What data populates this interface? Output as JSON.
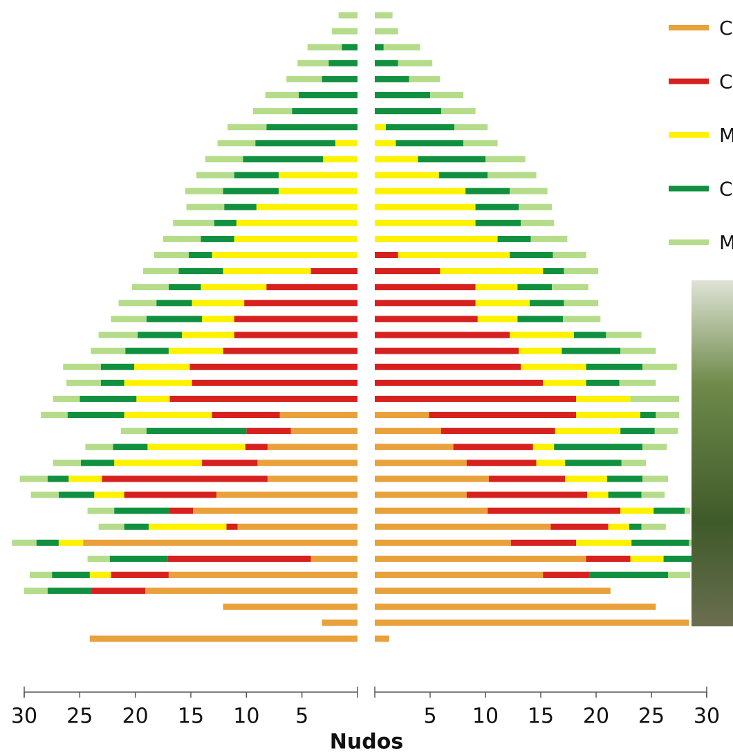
{
  "chart_data": [
    {
      "type": "bar",
      "orientation": "horizontal",
      "xlim": [
        30,
        0
      ],
      "xticks": [
        30,
        25,
        20,
        15,
        10,
        5
      ],
      "xlabel": "Nudos",
      "series": [
        {
          "color": "#e9a13b",
          "values": [
            0,
            0,
            0,
            0,
            0,
            0,
            0,
            0,
            0,
            0,
            0,
            0,
            0,
            0,
            0,
            0,
            0,
            0,
            0,
            0,
            0,
            0,
            0,
            0,
            0,
            7,
            6,
            8.1,
            9,
            8.1,
            12.7,
            14.8,
            10.8,
            24.7,
            4.2,
            17,
            19.1,
            12.1,
            3.2,
            24.1
          ]
        },
        {
          "color": "#d7211f",
          "values": [
            0,
            0,
            0,
            0,
            0,
            0,
            0,
            0,
            0,
            0,
            0,
            0,
            0,
            0,
            0,
            0,
            4.2,
            8.2,
            10.2,
            11.1,
            11.1,
            12.1,
            15.1,
            14.9,
            16.9,
            6.1,
            4,
            2,
            5,
            14.9,
            8.3,
            2.1,
            1,
            0,
            12.9,
            5.2,
            4.8,
            0,
            0,
            0
          ]
        },
        {
          "color": "#fff200",
          "values": [
            0,
            0,
            0,
            0,
            0,
            0,
            0,
            0,
            2,
            3.1,
            7.1,
            7.1,
            9.1,
            10.9,
            11.1,
            13.1,
            7.9,
            5.9,
            4.7,
            2.9,
            4.7,
            4.9,
            5,
            6.1,
            3,
            7.9,
            0,
            8.8,
            7.9,
            3,
            2.7,
            0,
            7,
            2.2,
            0,
            1.9,
            0,
            0,
            0,
            0
          ]
        },
        {
          "color": "#119040",
          "values": [
            0,
            0,
            1.4,
            2.6,
            3.2,
            5.3,
            5.9,
            8.2,
            7.2,
            7.2,
            4,
            5,
            2.9,
            2,
            3,
            2.1,
            4,
            2.9,
            3.2,
            5,
            4,
            3.9,
            3,
            2.1,
            5.1,
            5.1,
            9,
            3.1,
            3,
            1.9,
            3.2,
            5,
            2.2,
            2,
            5.2,
            3.4,
            4,
            0,
            0,
            0
          ]
        },
        {
          "color": "#b5dc8a",
          "values": [
            1.7,
            2.3,
            3.1,
            2.8,
            3.2,
            3,
            3.5,
            3.5,
            3.4,
            3.4,
            3.4,
            3.4,
            3.4,
            3.7,
            3.4,
            3.1,
            3.2,
            3.3,
            3.4,
            3.2,
            3.5,
            3.1,
            3.4,
            3.1,
            2.4,
            2.4,
            2.3,
            2.5,
            2.5,
            2.5,
            2.5,
            2.4,
            2.3,
            2.2,
            2,
            2,
            2.1,
            0,
            0,
            0
          ]
        }
      ]
    },
    {
      "type": "bar",
      "orientation": "horizontal",
      "xlim": [
        0,
        30
      ],
      "xticks": [
        5,
        10,
        15,
        20,
        25,
        30
      ],
      "legend": "upper right",
      "series": [
        {
          "name": "C",
          "color": "#e9a13b",
          "values": [
            0,
            0,
            0,
            0,
            0,
            0,
            0,
            0,
            0,
            0,
            0,
            0,
            0,
            0,
            0,
            0,
            0,
            0,
            0,
            0,
            0,
            0,
            0,
            0,
            0,
            4.9,
            6,
            7.1,
            8.3,
            10.3,
            8.3,
            10.2,
            15.9,
            12.3,
            19.1,
            15.2,
            21.3,
            25.4,
            28.4,
            1.3
          ]
        },
        {
          "name": "C",
          "color": "#d7211f",
          "values": [
            0,
            0,
            0,
            0,
            0,
            0,
            0,
            0,
            0,
            0,
            0,
            0,
            0,
            0,
            0,
            2.1,
            5.9,
            9.1,
            9.1,
            9.3,
            12.2,
            13,
            13.2,
            15.2,
            18.2,
            13.3,
            10.3,
            7.2,
            6.3,
            6.9,
            10.9,
            12,
            5.2,
            5.9,
            4,
            4.2,
            0,
            0,
            0,
            0
          ]
        },
        {
          "name": "M",
          "color": "#fff200",
          "values": [
            0,
            0,
            0,
            0,
            0,
            0,
            0,
            1,
            1.9,
            3.9,
            5.8,
            8.2,
            9.1,
            9.1,
            11.1,
            10.1,
            9.3,
            3.8,
            4.9,
            3.6,
            5.8,
            3.9,
            5.9,
            3.9,
            4.9,
            5.8,
            5.9,
            1.9,
            2.6,
            3.8,
            1.9,
            3,
            1.9,
            5,
            3,
            0,
            0,
            0,
            0,
            0
          ]
        },
        {
          "name": "C",
          "color": "#119040",
          "values": [
            0,
            0,
            0.8,
            2.1,
            3.1,
            5,
            6,
            6.2,
            6.1,
            6.1,
            4.4,
            4,
            3.9,
            4.1,
            3,
            3.9,
            1.9,
            3.1,
            3.1,
            4.1,
            2.9,
            5.3,
            5.1,
            3,
            0,
            1.4,
            3.1,
            8,
            5.1,
            3.2,
            3,
            2.8,
            1.1,
            5.2,
            6,
            7.1,
            0,
            0,
            0,
            0
          ]
        },
        {
          "name": "M",
          "color": "#b5dc8a",
          "values": [
            1.6,
            2.1,
            3.3,
            3.1,
            2.8,
            3,
            3.1,
            3,
            3.1,
            3.6,
            4.4,
            3.4,
            3,
            3,
            3.3,
            3,
            3.1,
            3.3,
            3.1,
            3.4,
            3.2,
            3.2,
            3.1,
            3.3,
            4.4,
            2.1,
            2.1,
            2.2,
            2.2,
            2.3,
            2.1,
            0.5,
            2.2,
            0.3,
            0,
            2,
            0,
            0,
            0,
            0
          ]
        }
      ]
    }
  ]
}
